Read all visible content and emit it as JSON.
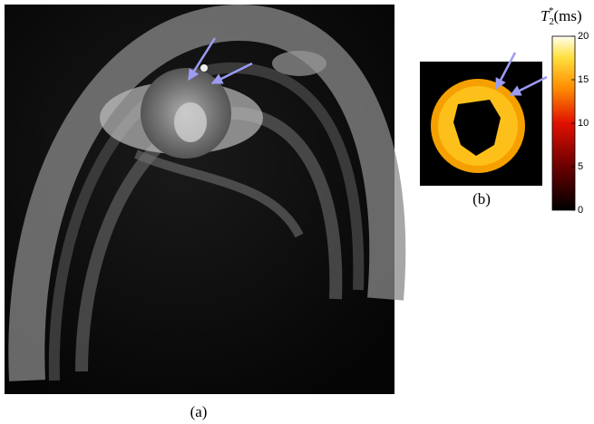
{
  "panels": [
    {
      "caption": "(a)"
    },
    {
      "caption": "(b)"
    }
  ],
  "colorbar": {
    "symbol": "T",
    "subscript": "2",
    "superscript": "*",
    "unit": "(ms)",
    "lim": [
      0,
      20
    ],
    "ticks": [
      0,
      5,
      10,
      15,
      20
    ]
  }
}
